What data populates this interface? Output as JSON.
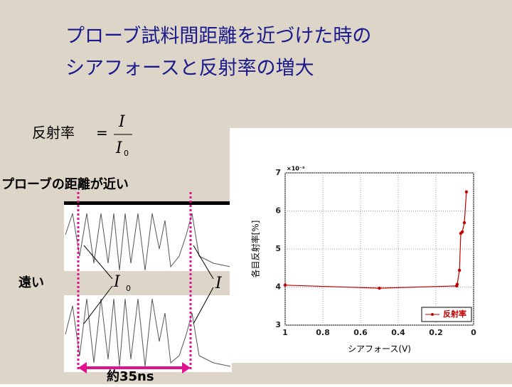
{
  "slide": {
    "title_lines": [
      "プローブ試料間距離を近づけた時の",
      "シアフォースと反射率の増大"
    ],
    "formula": {
      "left": "反射率",
      "equals": "=",
      "numerator": "I",
      "denominator": "I",
      "denominator_sub": "0"
    },
    "labels": {
      "near": "プローブの距離が近い",
      "far": "遠い",
      "i0": "I",
      "i0_sub": "0",
      "i": "I",
      "interval": "約35ns"
    }
  },
  "chart_data": {
    "type": "line",
    "xlabel": "シアフォース(V)",
    "ylabel": "各目反射率[%]",
    "multiplier": "×10⁻³",
    "x": [
      1,
      0.5,
      0.09,
      0.087,
      0.075,
      0.068,
      0.06,
      0.049,
      0.038
    ],
    "series": [
      {
        "name": "反射率",
        "color": "#c00000",
        "values": [
          4.05,
          3.97,
          4.03,
          4.07,
          4.44,
          5.41,
          5.45,
          5.69,
          6.5
        ]
      }
    ],
    "xlim": [
      1,
      0
    ],
    "xticks": [
      1,
      0.8,
      0.6,
      0.4,
      0.2,
      0
    ],
    "ylim": [
      3,
      7
    ],
    "yticks": [
      3,
      4,
      5,
      6,
      7
    ],
    "grid": true,
    "legend": "lower right"
  }
}
